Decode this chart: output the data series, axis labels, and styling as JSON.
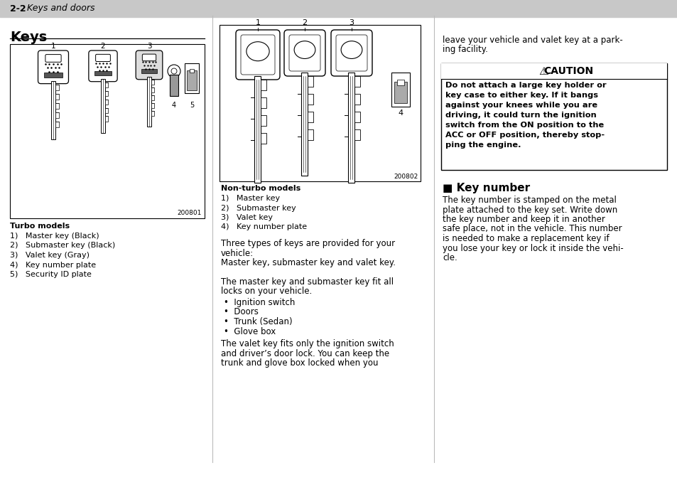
{
  "page_bg": "#ffffff",
  "header_bold": "2-2",
  "header_italic": "Keys and doors",
  "section_keys_title": "Keys",
  "fig_left_label": "200801",
  "fig_right_label": "200802",
  "turbo_title": "Turbo models",
  "turbo_items": [
    "1)   Master key (Black)",
    "2)   Submaster key (Black)",
    "3)   Valet key (Gray)",
    "4)   Key number plate",
    "5)   Security ID plate"
  ],
  "nonturbo_title": "Non-turbo models",
  "nonturbo_items": [
    "1)   Master key",
    "2)   Submaster key",
    "3)   Valet key",
    "4)   Key number plate"
  ],
  "para1_line1": "Three types of keys are provided for your",
  "para1_line2": "vehicle:",
  "para1_line3": "Master key, submaster key and valet key.",
  "para2_line1": "The master key and submaster key fit all",
  "para2_line2": "locks on your vehicle.",
  "bullet_items": [
    "Ignition switch",
    "Doors",
    "Trunk (Sedan)",
    "Glove box"
  ],
  "para3_line1": "The valet key fits only the ignition switch",
  "para3_line2": "and driver’s door lock. You can keep the",
  "para3_line3": "trunk and glove box locked when you",
  "right_para1_line1": "leave your vehicle and valet key at a park-",
  "right_para1_line2": "ing facility.",
  "caution_header": "CAUTION",
  "caution_lines": [
    "Do not attach a large key holder or",
    "key case to either key. If it bangs",
    "against your knees while you are",
    "driving, it could turn the ignition",
    "switch from the ON position to the",
    "ACC or OFF position, thereby stop-",
    "ping the engine."
  ],
  "keynumber_title": "■ Key number",
  "keynumber_lines": [
    "The key number is stamped on the metal",
    "plate attached to the key set. Write down",
    "the key number and keep it in another",
    "safe place, not in the vehicle. This number",
    "is needed to make a replacement key if",
    "you lose your key or lock it inside the vehi-",
    "cle."
  ]
}
